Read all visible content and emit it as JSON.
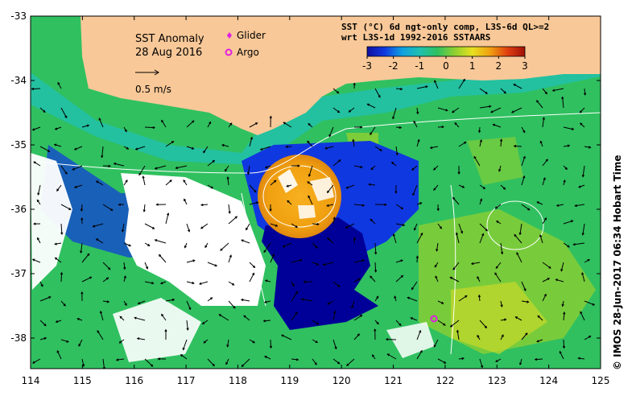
{
  "title": {
    "line1": "SST Anomaly",
    "line2": "28 Aug 2016"
  },
  "legend": {
    "glider_label": "Glider",
    "argo_label": "Argo",
    "glider_color": "#e020e0",
    "argo_color": "#e020e0"
  },
  "scale": {
    "label": "0.5 m/s"
  },
  "colorbar": {
    "title_line1": "SST (°C) 6d ngt-only comp, L3S-6d QL>=2",
    "title_line2": "wrt L3S-1d 1992-2016 SSTAARS",
    "ticks": [
      "-3",
      "-2",
      "-1",
      "0",
      "1",
      "2",
      "3"
    ],
    "colors": [
      "#1010a0",
      "#1038e0",
      "#10a0e0",
      "#20c0b0",
      "#30c060",
      "#90d030",
      "#e8e020",
      "#f0a010",
      "#e04010",
      "#a01008"
    ]
  },
  "axes": {
    "lon_ticks": [
      "114",
      "115",
      "116",
      "117",
      "118",
      "119",
      "120",
      "121",
      "122",
      "123",
      "124",
      "125"
    ],
    "lat_ticks": [
      "-33",
      "-34",
      "-35",
      "-36",
      "-37",
      "-38"
    ]
  },
  "credit": "© IMOS 28-Jun-2017 06:34 Hobart Time",
  "colors": {
    "land": "#f8c898",
    "ocean_base": "#30c060",
    "warm_eddy": "#f0a010",
    "cold_anomaly": "#000098",
    "no_data": "#ffffff"
  }
}
